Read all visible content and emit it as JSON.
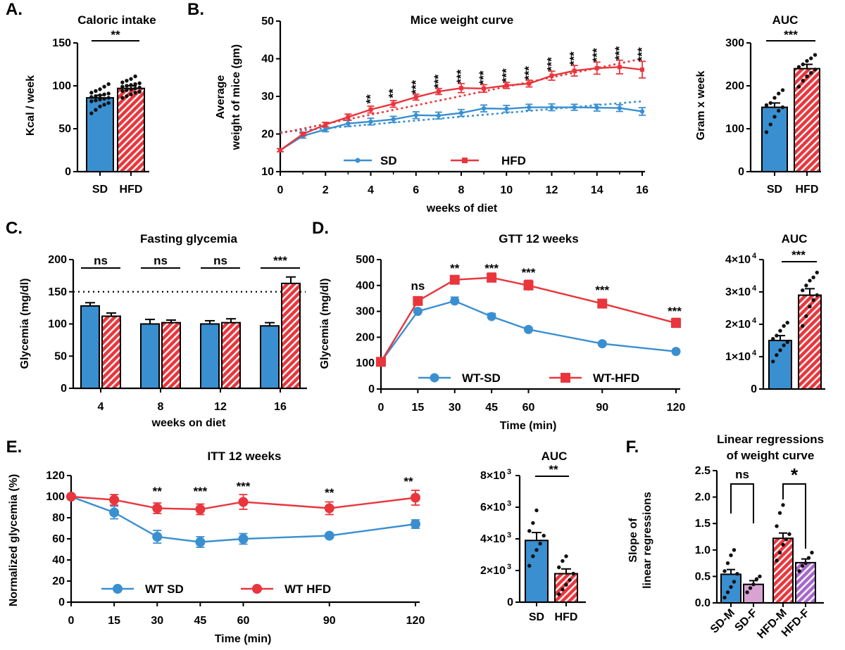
{
  "colors": {
    "sd": "#3a8fd0",
    "hfd": "#e8363c",
    "sd_f": "#d8a3d3",
    "hfd_f": "#a567c9",
    "dot": "#111111"
  },
  "chart_data": [
    {
      "id": "A",
      "type": "bar",
      "panel_label": "A.",
      "title": "Caloric intake",
      "ylabel": "Kcal / week",
      "ylim": [
        0,
        150
      ],
      "yticks": [
        "0",
        "50",
        "100",
        "150"
      ],
      "categories": [
        "SD",
        "HFD"
      ],
      "values": [
        86,
        97
      ],
      "errors": [
        3,
        3
      ],
      "points": [
        [
          68,
          72,
          76,
          78,
          80,
          82,
          83,
          84,
          85,
          86,
          87,
          88,
          89,
          90,
          91,
          92,
          94,
          96,
          99,
          102
        ],
        [
          86,
          88,
          90,
          92,
          93,
          94,
          95,
          96,
          97,
          98,
          99,
          100,
          101,
          102,
          103,
          104,
          106,
          108,
          111
        ]
      ],
      "significance": [
        {
          "label": "**"
        }
      ]
    },
    {
      "id": "B",
      "type": "line",
      "panel_label": "B.",
      "title": "Mice weight curve",
      "ylabel_lines": [
        "Average",
        "weight of mice (gm)"
      ],
      "xlabel": "weeks of diet",
      "xlim": [
        0,
        16
      ],
      "ylim": [
        10,
        50
      ],
      "xticks": [
        "0",
        "2",
        "4",
        "6",
        "8",
        "10",
        "12",
        "14",
        "16"
      ],
      "yticks": [
        "10",
        "20",
        "30",
        "40",
        "50"
      ],
      "x": [
        0,
        1,
        2,
        3,
        4,
        5,
        6,
        7,
        8,
        9,
        10,
        11,
        12,
        13,
        14,
        15,
        16
      ],
      "series": [
        {
          "name": "SD",
          "values": [
            15.7,
            19.5,
            21.2,
            22.8,
            23.3,
            23.9,
            25.0,
            24.9,
            25.6,
            26.8,
            26.7,
            27.1,
            27.1,
            27.1,
            27.0,
            26.9,
            26.0
          ],
          "errors": [
            0.4,
            0.6,
            0.6,
            0.8,
            0.9,
            0.8,
            0.9,
            0.9,
            0.9,
            0.9,
            0.9,
            0.8,
            0.9,
            0.8,
            0.9,
            0.9,
            1.0
          ]
        },
        {
          "name": "HFD",
          "values": [
            15.7,
            20.0,
            22.5,
            24.5,
            26.5,
            28.0,
            29.8,
            31.3,
            32.2,
            32.1,
            32.9,
            33.4,
            35.5,
            36.8,
            37.5,
            37.8,
            37.1
          ],
          "errors": [
            0.4,
            0.5,
            0.6,
            0.8,
            0.9,
            0.9,
            0.8,
            0.8,
            1.2,
            1.0,
            0.8,
            0.9,
            1.2,
            1.4,
            1.6,
            1.8,
            2.2
          ]
        }
      ],
      "trendlines": [
        {
          "name": "SD",
          "from": [
            0,
            20.5
          ],
          "to": [
            16,
            28.7
          ]
        },
        {
          "name": "HFD",
          "from": [
            0,
            20.2
          ],
          "to": [
            16,
            40.0
          ]
        }
      ],
      "significance": [
        {
          "x": 4,
          "label": "**"
        },
        {
          "x": 5,
          "label": "**"
        },
        {
          "x": 6,
          "label": "***"
        },
        {
          "x": 7,
          "label": "***"
        },
        {
          "x": 8,
          "label": "***"
        },
        {
          "x": 9,
          "label": "***"
        },
        {
          "x": 10,
          "label": "***"
        },
        {
          "x": 11,
          "label": "***"
        },
        {
          "x": 12,
          "label": "***"
        },
        {
          "x": 13,
          "label": "***"
        },
        {
          "x": 14,
          "label": "***"
        },
        {
          "x": 15,
          "label": "***"
        },
        {
          "x": 16,
          "label": "***"
        }
      ],
      "legend": [
        "SD",
        "HFD"
      ]
    },
    {
      "id": "B2",
      "type": "bar",
      "title": "AUC",
      "ylabel": "Gram x week",
      "ylim": [
        0,
        300
      ],
      "yticks": [
        "0",
        "100",
        "200",
        "300"
      ],
      "categories": [
        "SD",
        "HFD"
      ],
      "values": [
        150,
        240
      ],
      "errors": [
        10,
        10
      ],
      "points": [
        [
          92,
          110,
          128,
          142,
          150,
          155,
          160,
          172,
          182,
          190
        ],
        [
          198,
          212,
          222,
          230,
          238,
          244,
          250,
          258,
          264,
          272
        ]
      ],
      "significance": [
        {
          "label": "***"
        }
      ]
    },
    {
      "id": "C",
      "type": "bar",
      "panel_label": "C.",
      "title": "Fasting glycemia",
      "ylabel": "Glycemia (mg/dl)",
      "xlabel": "weeks on diet",
      "ylim": [
        0,
        200
      ],
      "yticks": [
        "0",
        "50",
        "100",
        "150",
        "200"
      ],
      "categories": [
        "4",
        "8",
        "12",
        "16"
      ],
      "reference_line": 150,
      "series": [
        {
          "name": "SD",
          "values": [
            128,
            100,
            100,
            97
          ],
          "errors": [
            5,
            7,
            5,
            5
          ]
        },
        {
          "name": "HFD",
          "values": [
            112,
            102,
            102,
            163
          ],
          "errors": [
            5,
            4,
            6,
            10
          ]
        }
      ],
      "significance": [
        {
          "label": "ns"
        },
        {
          "label": "ns"
        },
        {
          "label": "ns"
        },
        {
          "label": "***"
        }
      ]
    },
    {
      "id": "D",
      "type": "line",
      "panel_label": "D.",
      "title": "GTT 12 weeks",
      "ylabel": "Glycemia (mg/dl)",
      "xlabel": "Time (min)",
      "xlim": [
        0,
        120
      ],
      "ylim": [
        0,
        500
      ],
      "xticks": [
        "0",
        "15",
        "30",
        "45",
        "60",
        "90",
        "120"
      ],
      "yticks": [
        "0",
        "100",
        "200",
        "300",
        "400",
        "500"
      ],
      "x": [
        0,
        15,
        30,
        45,
        60,
        90,
        120
      ],
      "series": [
        {
          "name": "WT-SD",
          "values": [
            105,
            300,
            340,
            280,
            230,
            175,
            145
          ],
          "errors": [
            5,
            8,
            15,
            12,
            8,
            8,
            6
          ]
        },
        {
          "name": "WT-HFD",
          "values": [
            105,
            340,
            422,
            430,
            400,
            330,
            255
          ],
          "errors": [
            5,
            10,
            15,
            18,
            20,
            15,
            18
          ]
        }
      ],
      "significance": [
        {
          "x": 15,
          "label": "ns"
        },
        {
          "x": 30,
          "label": "**"
        },
        {
          "x": 45,
          "label": "***"
        },
        {
          "x": 60,
          "label": "***"
        },
        {
          "x": 90,
          "label": "***"
        },
        {
          "x": 120,
          "label": "***"
        }
      ],
      "legend": [
        "WT-SD",
        "WT-HFD"
      ]
    },
    {
      "id": "D2",
      "type": "bar",
      "title": "AUC",
      "ylim": [
        0,
        40000
      ],
      "yticks": [
        "1×10",
        "2×10",
        "3×10",
        "4×10"
      ],
      "ytick_exponent": "4",
      "categories": [
        "",
        ""
      ],
      "values": [
        15000,
        29000
      ],
      "errors": [
        1500,
        2000
      ],
      "points": [
        [
          8500,
          10500,
          12000,
          13500,
          14500,
          15500,
          16500,
          18000,
          19500,
          20500
        ],
        [
          19500,
          22500,
          25500,
          27500,
          29000,
          30500,
          32000,
          33500,
          34500,
          36000
        ]
      ],
      "significance": [
        {
          "label": "***"
        }
      ]
    },
    {
      "id": "E",
      "type": "line",
      "panel_label": "E.",
      "title": "ITT 12 weeks",
      "ylabel": "Normalized glycemia (%)",
      "xlabel": "Time (min)",
      "xlim": [
        0,
        120
      ],
      "ylim": [
        0,
        120
      ],
      "xticks": [
        "0",
        "15",
        "30",
        "45",
        "60",
        "90",
        "120"
      ],
      "yticks": [
        "0",
        "20",
        "40",
        "60",
        "80",
        "100",
        "120"
      ],
      "x": [
        0,
        15,
        30,
        45,
        60,
        90,
        120
      ],
      "series": [
        {
          "name": "WT SD",
          "values": [
            100,
            85,
            62,
            57,
            60,
            63,
            74
          ],
          "errors": [
            1,
            6,
            6,
            5,
            5,
            2,
            4
          ]
        },
        {
          "name": "WT HFD",
          "values": [
            100,
            97,
            89,
            88,
            95,
            89,
            99
          ],
          "errors": [
            1,
            5,
            5,
            5,
            7,
            6,
            7
          ]
        }
      ],
      "significance": [
        {
          "x": 30,
          "label": "**"
        },
        {
          "x": 45,
          "label": "***"
        },
        {
          "x": 60,
          "label": "***"
        },
        {
          "x": 90,
          "label": "**"
        },
        {
          "x": 120,
          "label": "**"
        }
      ],
      "legend": [
        "WT SD",
        "WT HFD"
      ]
    },
    {
      "id": "E2",
      "type": "bar",
      "title": "AUC",
      "ylim": [
        0,
        8000
      ],
      "yticks": [
        "2×10",
        "4×10",
        "6×10",
        "8×10"
      ],
      "ytick_exponent": "3",
      "categories": [
        "SD",
        "HFD"
      ],
      "values": [
        3900,
        1800
      ],
      "errors": [
        500,
        300
      ],
      "points": [
        [
          2300,
          2900,
          3300,
          3700,
          4200,
          4500,
          5000,
          5800
        ],
        [
          500,
          800,
          1100,
          1400,
          1800,
          2200,
          2600,
          2900
        ]
      ],
      "significance": [
        {
          "label": "**"
        }
      ]
    },
    {
      "id": "F",
      "type": "bar",
      "panel_label": "F.",
      "title": "Linear regressions",
      "subtitle": "of weight curve",
      "ylabel_lines": [
        "Slope of",
        "linear regressions"
      ],
      "ylim": [
        0,
        2.5
      ],
      "yticks": [
        "0.0",
        "0.5",
        "1.0",
        "1.5",
        "2.0",
        "2.5"
      ],
      "categories": [
        "SD-M",
        "SD-F",
        "HFD-M",
        "HFD-F"
      ],
      "values": [
        0.54,
        0.35,
        1.22,
        0.76
      ],
      "errors": [
        0.09,
        0.07,
        0.1,
        0.07
      ],
      "points": [
        [
          0.1,
          0.2,
          0.3,
          0.4,
          0.55,
          0.6,
          0.75,
          0.9,
          1.0
        ],
        [
          0.2,
          0.28,
          0.35,
          0.45,
          0.5
        ],
        [
          0.8,
          0.95,
          1.1,
          1.2,
          1.3,
          1.45,
          1.7,
          1.85
        ],
        [
          0.6,
          0.7,
          0.75,
          0.85,
          0.95
        ]
      ],
      "significance": [
        {
          "label": "ns"
        },
        {
          "label": "*"
        }
      ]
    }
  ]
}
